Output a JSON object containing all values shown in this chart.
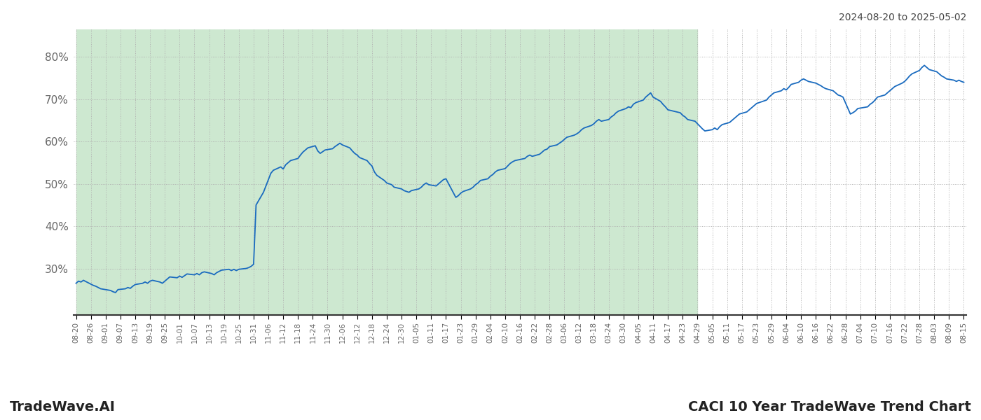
{
  "title_right": "2024-08-20 to 2025-05-02",
  "footer_left": "TradeWave.AI",
  "footer_right": "CACI 10 Year TradeWave Trend Chart",
  "ylim": [
    0.19,
    0.865
  ],
  "yticks": [
    0.3,
    0.4,
    0.5,
    0.6,
    0.7,
    0.8
  ],
  "ytick_labels": [
    "30%",
    "40%",
    "50%",
    "60%",
    "70%",
    "80%"
  ],
  "bg_color": "#ffffff",
  "grid_color": "#b0b0b0",
  "line_color": "#1a6bbf",
  "shade_color": "#cde8d0",
  "shade_start": "2024-08-20",
  "shade_end": "2025-04-29",
  "trend_data": [
    [
      "2024-08-20",
      0.265
    ],
    [
      "2024-08-21",
      0.27
    ],
    [
      "2024-08-22",
      0.268
    ],
    [
      "2024-08-23",
      0.272
    ],
    [
      "2024-08-26",
      0.263
    ],
    [
      "2024-08-27",
      0.26
    ],
    [
      "2024-08-28",
      0.258
    ],
    [
      "2024-08-29",
      0.255
    ],
    [
      "2024-08-30",
      0.252
    ],
    [
      "2024-09-03",
      0.248
    ],
    [
      "2024-09-04",
      0.245
    ],
    [
      "2024-09-05",
      0.243
    ],
    [
      "2024-09-06",
      0.25
    ],
    [
      "2024-09-09",
      0.252
    ],
    [
      "2024-09-10",
      0.255
    ],
    [
      "2024-09-11",
      0.253
    ],
    [
      "2024-09-12",
      0.258
    ],
    [
      "2024-09-13",
      0.262
    ],
    [
      "2024-09-16",
      0.265
    ],
    [
      "2024-09-17",
      0.268
    ],
    [
      "2024-09-18",
      0.265
    ],
    [
      "2024-09-19",
      0.27
    ],
    [
      "2024-09-20",
      0.272
    ],
    [
      "2024-09-23",
      0.268
    ],
    [
      "2024-09-24",
      0.265
    ],
    [
      "2024-09-25",
      0.27
    ],
    [
      "2024-09-26",
      0.275
    ],
    [
      "2024-09-27",
      0.28
    ],
    [
      "2024-09-30",
      0.278
    ],
    [
      "2024-10-01",
      0.282
    ],
    [
      "2024-10-02",
      0.279
    ],
    [
      "2024-10-03",
      0.283
    ],
    [
      "2024-10-04",
      0.287
    ],
    [
      "2024-10-07",
      0.285
    ],
    [
      "2024-10-08",
      0.288
    ],
    [
      "2024-10-09",
      0.285
    ],
    [
      "2024-10-10",
      0.29
    ],
    [
      "2024-10-11",
      0.292
    ],
    [
      "2024-10-14",
      0.288
    ],
    [
      "2024-10-15",
      0.285
    ],
    [
      "2024-10-16",
      0.29
    ],
    [
      "2024-10-17",
      0.293
    ],
    [
      "2024-10-18",
      0.296
    ],
    [
      "2024-10-21",
      0.298
    ],
    [
      "2024-10-22",
      0.295
    ],
    [
      "2024-10-23",
      0.298
    ],
    [
      "2024-10-24",
      0.295
    ],
    [
      "2024-10-25",
      0.298
    ],
    [
      "2024-10-28",
      0.3
    ],
    [
      "2024-10-29",
      0.302
    ],
    [
      "2024-10-30",
      0.305
    ],
    [
      "2024-10-31",
      0.31
    ],
    [
      "2024-11-01",
      0.45
    ],
    [
      "2024-11-04",
      0.48
    ],
    [
      "2024-11-05",
      0.495
    ],
    [
      "2024-11-06",
      0.51
    ],
    [
      "2024-11-07",
      0.525
    ],
    [
      "2024-11-08",
      0.532
    ],
    [
      "2024-11-11",
      0.54
    ],
    [
      "2024-11-12",
      0.535
    ],
    [
      "2024-11-13",
      0.545
    ],
    [
      "2024-11-14",
      0.55
    ],
    [
      "2024-11-15",
      0.555
    ],
    [
      "2024-11-18",
      0.56
    ],
    [
      "2024-11-19",
      0.568
    ],
    [
      "2024-11-20",
      0.575
    ],
    [
      "2024-11-21",
      0.58
    ],
    [
      "2024-11-22",
      0.585
    ],
    [
      "2024-11-25",
      0.59
    ],
    [
      "2024-11-26",
      0.578
    ],
    [
      "2024-11-27",
      0.572
    ],
    [
      "2024-11-29",
      0.58
    ],
    [
      "2024-12-02",
      0.583
    ],
    [
      "2024-12-03",
      0.588
    ],
    [
      "2024-12-04",
      0.592
    ],
    [
      "2024-12-05",
      0.596
    ],
    [
      "2024-12-06",
      0.592
    ],
    [
      "2024-12-09",
      0.585
    ],
    [
      "2024-12-10",
      0.578
    ],
    [
      "2024-12-11",
      0.572
    ],
    [
      "2024-12-12",
      0.568
    ],
    [
      "2024-12-13",
      0.562
    ],
    [
      "2024-12-16",
      0.555
    ],
    [
      "2024-12-17",
      0.548
    ],
    [
      "2024-12-18",
      0.542
    ],
    [
      "2024-12-19",
      0.528
    ],
    [
      "2024-12-20",
      0.52
    ],
    [
      "2024-12-23",
      0.508
    ],
    [
      "2024-12-24",
      0.502
    ],
    [
      "2024-12-26",
      0.498
    ],
    [
      "2024-12-27",
      0.492
    ],
    [
      "2024-12-30",
      0.488
    ],
    [
      "2024-12-31",
      0.484
    ],
    [
      "2025-01-02",
      0.48
    ],
    [
      "2025-01-03",
      0.484
    ],
    [
      "2025-01-06",
      0.488
    ],
    [
      "2025-01-07",
      0.492
    ],
    [
      "2025-01-08",
      0.498
    ],
    [
      "2025-01-09",
      0.502
    ],
    [
      "2025-01-10",
      0.498
    ],
    [
      "2025-01-13",
      0.495
    ],
    [
      "2025-01-14",
      0.5
    ],
    [
      "2025-01-15",
      0.505
    ],
    [
      "2025-01-16",
      0.51
    ],
    [
      "2025-01-17",
      0.512
    ],
    [
      "2025-01-21",
      0.468
    ],
    [
      "2025-01-22",
      0.472
    ],
    [
      "2025-01-23",
      0.478
    ],
    [
      "2025-01-24",
      0.482
    ],
    [
      "2025-01-27",
      0.488
    ],
    [
      "2025-01-28",
      0.492
    ],
    [
      "2025-01-29",
      0.498
    ],
    [
      "2025-01-30",
      0.502
    ],
    [
      "2025-01-31",
      0.508
    ],
    [
      "2025-02-03",
      0.512
    ],
    [
      "2025-02-04",
      0.518
    ],
    [
      "2025-02-05",
      0.522
    ],
    [
      "2025-02-06",
      0.528
    ],
    [
      "2025-02-07",
      0.532
    ],
    [
      "2025-02-10",
      0.536
    ],
    [
      "2025-02-11",
      0.542
    ],
    [
      "2025-02-12",
      0.548
    ],
    [
      "2025-02-13",
      0.552
    ],
    [
      "2025-02-14",
      0.555
    ],
    [
      "2025-02-18",
      0.56
    ],
    [
      "2025-02-19",
      0.565
    ],
    [
      "2025-02-20",
      0.568
    ],
    [
      "2025-02-21",
      0.565
    ],
    [
      "2025-02-24",
      0.57
    ],
    [
      "2025-02-25",
      0.575
    ],
    [
      "2025-02-26",
      0.58
    ],
    [
      "2025-02-27",
      0.582
    ],
    [
      "2025-02-28",
      0.588
    ],
    [
      "2025-03-03",
      0.592
    ],
    [
      "2025-03-04",
      0.596
    ],
    [
      "2025-03-05",
      0.6
    ],
    [
      "2025-03-06",
      0.605
    ],
    [
      "2025-03-07",
      0.61
    ],
    [
      "2025-03-10",
      0.615
    ],
    [
      "2025-03-11",
      0.618
    ],
    [
      "2025-03-12",
      0.622
    ],
    [
      "2025-03-13",
      0.628
    ],
    [
      "2025-03-14",
      0.632
    ],
    [
      "2025-03-17",
      0.638
    ],
    [
      "2025-03-18",
      0.642
    ],
    [
      "2025-03-19",
      0.648
    ],
    [
      "2025-03-20",
      0.652
    ],
    [
      "2025-03-21",
      0.648
    ],
    [
      "2025-03-24",
      0.652
    ],
    [
      "2025-03-25",
      0.658
    ],
    [
      "2025-03-26",
      0.662
    ],
    [
      "2025-03-27",
      0.668
    ],
    [
      "2025-03-28",
      0.672
    ],
    [
      "2025-03-31",
      0.678
    ],
    [
      "2025-04-01",
      0.682
    ],
    [
      "2025-04-02",
      0.68
    ],
    [
      "2025-04-03",
      0.688
    ],
    [
      "2025-04-04",
      0.692
    ],
    [
      "2025-04-07",
      0.698
    ],
    [
      "2025-04-08",
      0.705
    ],
    [
      "2025-04-09",
      0.71
    ],
    [
      "2025-04-10",
      0.715
    ],
    [
      "2025-04-11",
      0.705
    ],
    [
      "2025-04-14",
      0.695
    ],
    [
      "2025-04-15",
      0.688
    ],
    [
      "2025-04-16",
      0.682
    ],
    [
      "2025-04-17",
      0.675
    ],
    [
      "2025-04-22",
      0.668
    ],
    [
      "2025-04-23",
      0.662
    ],
    [
      "2025-04-24",
      0.658
    ],
    [
      "2025-04-25",
      0.652
    ],
    [
      "2025-04-28",
      0.648
    ],
    [
      "2025-04-29",
      0.642
    ],
    [
      "2025-04-30",
      0.636
    ],
    [
      "2025-05-01",
      0.63
    ],
    [
      "2025-05-02",
      0.625
    ],
    [
      "2025-05-05",
      0.628
    ],
    [
      "2025-05-06",
      0.632
    ],
    [
      "2025-05-07",
      0.628
    ],
    [
      "2025-05-08",
      0.635
    ],
    [
      "2025-05-09",
      0.64
    ],
    [
      "2025-05-12",
      0.645
    ],
    [
      "2025-05-13",
      0.65
    ],
    [
      "2025-05-14",
      0.655
    ],
    [
      "2025-05-15",
      0.66
    ],
    [
      "2025-05-16",
      0.665
    ],
    [
      "2025-05-19",
      0.67
    ],
    [
      "2025-05-20",
      0.675
    ],
    [
      "2025-05-21",
      0.68
    ],
    [
      "2025-05-22",
      0.685
    ],
    [
      "2025-05-23",
      0.69
    ],
    [
      "2025-05-27",
      0.698
    ],
    [
      "2025-05-28",
      0.705
    ],
    [
      "2025-05-29",
      0.71
    ],
    [
      "2025-05-30",
      0.715
    ],
    [
      "2025-06-02",
      0.72
    ],
    [
      "2025-06-03",
      0.725
    ],
    [
      "2025-06-04",
      0.722
    ],
    [
      "2025-06-05",
      0.728
    ],
    [
      "2025-06-06",
      0.735
    ],
    [
      "2025-06-09",
      0.74
    ],
    [
      "2025-06-10",
      0.745
    ],
    [
      "2025-06-11",
      0.748
    ],
    [
      "2025-06-12",
      0.745
    ],
    [
      "2025-06-13",
      0.742
    ],
    [
      "2025-06-16",
      0.738
    ],
    [
      "2025-06-17",
      0.735
    ],
    [
      "2025-06-18",
      0.732
    ],
    [
      "2025-06-19",
      0.728
    ],
    [
      "2025-06-20",
      0.725
    ],
    [
      "2025-06-23",
      0.72
    ],
    [
      "2025-06-24",
      0.715
    ],
    [
      "2025-06-25",
      0.71
    ],
    [
      "2025-06-26",
      0.708
    ],
    [
      "2025-06-27",
      0.705
    ],
    [
      "2025-06-30",
      0.665
    ],
    [
      "2025-07-01",
      0.668
    ],
    [
      "2025-07-02",
      0.672
    ],
    [
      "2025-07-03",
      0.678
    ],
    [
      "2025-07-07",
      0.682
    ],
    [
      "2025-07-08",
      0.688
    ],
    [
      "2025-07-09",
      0.692
    ],
    [
      "2025-07-10",
      0.698
    ],
    [
      "2025-07-11",
      0.705
    ],
    [
      "2025-07-14",
      0.71
    ],
    [
      "2025-07-15",
      0.715
    ],
    [
      "2025-07-16",
      0.72
    ],
    [
      "2025-07-17",
      0.725
    ],
    [
      "2025-07-18",
      0.73
    ],
    [
      "2025-07-21",
      0.738
    ],
    [
      "2025-07-22",
      0.742
    ],
    [
      "2025-07-23",
      0.748
    ],
    [
      "2025-07-24",
      0.755
    ],
    [
      "2025-07-25",
      0.76
    ],
    [
      "2025-07-28",
      0.768
    ],
    [
      "2025-07-29",
      0.775
    ],
    [
      "2025-07-30",
      0.78
    ],
    [
      "2025-07-31",
      0.775
    ],
    [
      "2025-08-01",
      0.77
    ],
    [
      "2025-08-04",
      0.765
    ],
    [
      "2025-08-05",
      0.76
    ],
    [
      "2025-08-06",
      0.755
    ],
    [
      "2025-08-07",
      0.752
    ],
    [
      "2025-08-08",
      0.748
    ],
    [
      "2025-08-11",
      0.745
    ],
    [
      "2025-08-12",
      0.742
    ],
    [
      "2025-08-13",
      0.745
    ],
    [
      "2025-08-14",
      0.742
    ],
    [
      "2025-08-15",
      0.74
    ]
  ],
  "x_tick_dates": [
    "2024-08-20",
    "2024-08-26",
    "2024-09-01",
    "2024-09-07",
    "2024-09-13",
    "2024-09-19",
    "2024-09-25",
    "2024-10-01",
    "2024-10-07",
    "2024-10-13",
    "2024-10-19",
    "2024-10-25",
    "2024-10-31",
    "2024-11-06",
    "2024-11-12",
    "2024-11-18",
    "2024-11-24",
    "2024-11-30",
    "2024-12-06",
    "2024-12-12",
    "2024-12-18",
    "2024-12-24",
    "2024-12-30",
    "2025-01-05",
    "2025-01-11",
    "2025-01-17",
    "2025-01-23",
    "2025-01-29",
    "2025-02-04",
    "2025-02-10",
    "2025-02-16",
    "2025-02-22",
    "2025-02-28",
    "2025-03-06",
    "2025-03-12",
    "2025-03-18",
    "2025-03-24",
    "2025-03-30",
    "2025-04-05",
    "2025-04-11",
    "2025-04-17",
    "2025-04-23",
    "2025-04-29",
    "2025-05-05",
    "2025-05-11",
    "2025-05-17",
    "2025-05-23",
    "2025-05-29",
    "2025-06-04",
    "2025-06-10",
    "2025-06-16",
    "2025-06-22",
    "2025-06-28",
    "2025-07-04",
    "2025-07-10",
    "2025-07-16",
    "2025-07-22",
    "2025-07-28",
    "2025-08-03",
    "2025-08-09",
    "2025-08-15"
  ],
  "x_tick_labels": [
    "08-20",
    "08-26",
    "09-01",
    "09-07",
    "09-13",
    "09-19",
    "09-25",
    "10-01",
    "10-07",
    "10-13",
    "10-19",
    "10-25",
    "10-31",
    "11-06",
    "11-12",
    "11-18",
    "11-24",
    "11-30",
    "12-06",
    "12-12",
    "12-18",
    "12-24",
    "12-30",
    "01-05",
    "01-11",
    "01-17",
    "01-23",
    "01-29",
    "02-04",
    "02-10",
    "02-16",
    "02-22",
    "02-28",
    "03-06",
    "03-12",
    "03-18",
    "03-24",
    "03-30",
    "04-05",
    "04-11",
    "04-17",
    "04-23",
    "04-29",
    "05-05",
    "05-11",
    "05-17",
    "05-23",
    "05-29",
    "06-04",
    "06-10",
    "06-16",
    "06-22",
    "06-28",
    "07-04",
    "07-10",
    "07-16",
    "07-22",
    "07-28",
    "08-03",
    "08-09",
    "08-15"
  ]
}
